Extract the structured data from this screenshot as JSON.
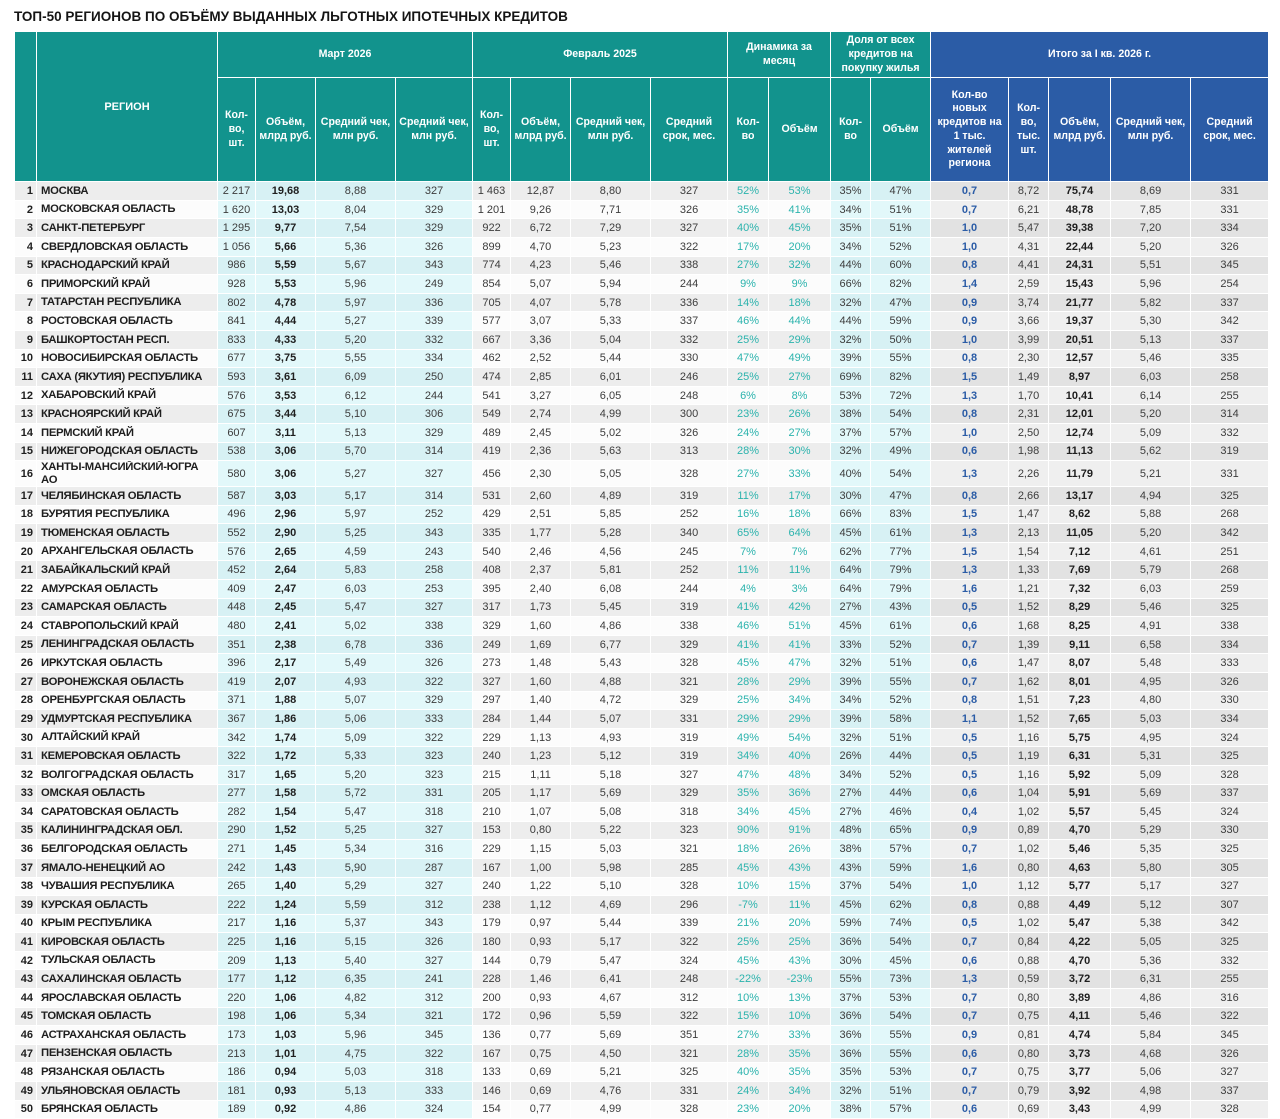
{
  "title": "ТОП-50 РЕГИОНОВ ПО ОБЪЁМУ ВЫДАННЫХ ЛЬГОТНЫХ ИПОТЕЧНЫХ КРЕДИТОВ",
  "colors": {
    "header_teal": "#12938D",
    "header_blue": "#2B5CA6",
    "dynamics_text": "#2BB3AD",
    "total_first_col_text": "#2B5CA6",
    "light_cyan_odd": "#D7F1F4",
    "light_cyan_even": "#E2F8FA",
    "neutral_odd": "#EDEDED",
    "total_odd": "#E2E2E2"
  },
  "chart_data": {
    "type": "table",
    "title": "ТОП-50 РЕГИОНОВ ПО ОБЪЁМУ ВЫДАННЫХ ЛЬГОТНЫХ ИПОТЕЧНЫХ КРЕДИТОВ",
    "region_header": "РЕГИОН",
    "column_groups": [
      {
        "label": "Март 2026",
        "cols": [
          "Кол-во, шт.",
          "Объём, млрд руб.",
          "Средний чек, млн руб.",
          "Средний чек, млн руб."
        ]
      },
      {
        "label": "Февраль 2025",
        "cols": [
          "Кол-во, шт.",
          "Объём, млрд руб.",
          "Средний чек, млн руб.",
          "Средний срок, мес."
        ]
      },
      {
        "label": "Динамика за месяц",
        "cols": [
          "Кол-во",
          "Объём"
        ]
      },
      {
        "label": "Доля от всех кредитов на покупку жилья",
        "cols": [
          "Кол-во",
          "Объём"
        ]
      },
      {
        "label": "Итого за I кв. 2026 г.",
        "cols": [
          "Кол-во новых кредитов на 1 тыс. жителей региона",
          "Кол-во, тыс. шт.",
          "Объём, млрд руб.",
          "Средний чек, млн руб.",
          "Средний срок, мес."
        ]
      }
    ],
    "rows": [
      [
        "1",
        "МОСКВА",
        "2 217",
        "19,68",
        "8,88",
        "327",
        "1 463",
        "12,87",
        "8,80",
        "327",
        "52%",
        "53%",
        "35%",
        "47%",
        "0,7",
        "8,72",
        "75,74",
        "8,69",
        "331"
      ],
      [
        "2",
        "МОСКОВСКАЯ ОБЛАСТЬ",
        "1 620",
        "13,03",
        "8,04",
        "329",
        "1 201",
        "9,26",
        "7,71",
        "326",
        "35%",
        "41%",
        "34%",
        "51%",
        "0,7",
        "6,21",
        "48,78",
        "7,85",
        "331"
      ],
      [
        "3",
        "САНКТ-ПЕТЕРБУРГ",
        "1 295",
        "9,77",
        "7,54",
        "329",
        "922",
        "6,72",
        "7,29",
        "327",
        "40%",
        "45%",
        "35%",
        "51%",
        "1,0",
        "5,47",
        "39,38",
        "7,20",
        "334"
      ],
      [
        "4",
        "СВЕРДЛОВСКАЯ ОБЛАСТЬ",
        "1 056",
        "5,66",
        "5,36",
        "326",
        "899",
        "4,70",
        "5,23",
        "322",
        "17%",
        "20%",
        "34%",
        "52%",
        "1,0",
        "4,31",
        "22,44",
        "5,20",
        "326"
      ],
      [
        "5",
        "КРАСНОДАРСКИЙ КРАЙ",
        "986",
        "5,59",
        "5,67",
        "343",
        "774",
        "4,23",
        "5,46",
        "338",
        "27%",
        "32%",
        "44%",
        "60%",
        "0,8",
        "4,41",
        "24,31",
        "5,51",
        "345"
      ],
      [
        "6",
        "ПРИМОРСКИЙ КРАЙ",
        "928",
        "5,53",
        "5,96",
        "249",
        "854",
        "5,07",
        "5,94",
        "244",
        "9%",
        "9%",
        "66%",
        "82%",
        "1,4",
        "2,59",
        "15,43",
        "5,96",
        "254"
      ],
      [
        "7",
        "ТАТАРСТАН РЕСПУБЛИКА",
        "802",
        "4,78",
        "5,97",
        "336",
        "705",
        "4,07",
        "5,78",
        "336",
        "14%",
        "18%",
        "32%",
        "47%",
        "0,9",
        "3,74",
        "21,77",
        "5,82",
        "337"
      ],
      [
        "8",
        "РОСТОВСКАЯ ОБЛАСТЬ",
        "841",
        "4,44",
        "5,27",
        "339",
        "577",
        "3,07",
        "5,33",
        "337",
        "46%",
        "44%",
        "44%",
        "59%",
        "0,9",
        "3,66",
        "19,37",
        "5,30",
        "342"
      ],
      [
        "9",
        "БАШКОРТОСТАН РЕСП.",
        "833",
        "4,33",
        "5,20",
        "332",
        "667",
        "3,36",
        "5,04",
        "332",
        "25%",
        "29%",
        "32%",
        "50%",
        "1,0",
        "3,99",
        "20,51",
        "5,13",
        "337"
      ],
      [
        "10",
        "НОВОСИБИРСКАЯ ОБЛАСТЬ",
        "677",
        "3,75",
        "5,55",
        "334",
        "462",
        "2,52",
        "5,44",
        "330",
        "47%",
        "49%",
        "39%",
        "55%",
        "0,8",
        "2,30",
        "12,57",
        "5,46",
        "335"
      ],
      [
        "11",
        "САХА (ЯКУТИЯ) РЕСПУБЛИКА",
        "593",
        "3,61",
        "6,09",
        "250",
        "474",
        "2,85",
        "6,01",
        "246",
        "25%",
        "27%",
        "69%",
        "82%",
        "1,5",
        "1,49",
        "8,97",
        "6,03",
        "258"
      ],
      [
        "12",
        "ХАБАРОВСКИЙ КРАЙ",
        "576",
        "3,53",
        "6,12",
        "244",
        "541",
        "3,27",
        "6,05",
        "248",
        "6%",
        "8%",
        "53%",
        "72%",
        "1,3",
        "1,70",
        "10,41",
        "6,14",
        "255"
      ],
      [
        "13",
        "КРАСНОЯРСКИЙ КРАЙ",
        "675",
        "3,44",
        "5,10",
        "306",
        "549",
        "2,74",
        "4,99",
        "300",
        "23%",
        "26%",
        "38%",
        "54%",
        "0,8",
        "2,31",
        "12,01",
        "5,20",
        "314"
      ],
      [
        "14",
        "ПЕРМСКИЙ КРАЙ",
        "607",
        "3,11",
        "5,13",
        "329",
        "489",
        "2,45",
        "5,02",
        "326",
        "24%",
        "27%",
        "37%",
        "57%",
        "1,0",
        "2,50",
        "12,74",
        "5,09",
        "332"
      ],
      [
        "15",
        "НИЖЕГОРОДСКАЯ ОБЛАСТЬ",
        "538",
        "3,06",
        "5,70",
        "314",
        "419",
        "2,36",
        "5,63",
        "313",
        "28%",
        "30%",
        "32%",
        "49%",
        "0,6",
        "1,98",
        "11,13",
        "5,62",
        "319"
      ],
      [
        "16",
        "ХАНТЫ-МАНСИЙСКИЙ-ЮГРА АО",
        "580",
        "3,06",
        "5,27",
        "327",
        "456",
        "2,30",
        "5,05",
        "328",
        "27%",
        "33%",
        "40%",
        "54%",
        "1,3",
        "2,26",
        "11,79",
        "5,21",
        "331"
      ],
      [
        "17",
        "ЧЕЛЯБИНСКАЯ ОБЛАСТЬ",
        "587",
        "3,03",
        "5,17",
        "314",
        "531",
        "2,60",
        "4,89",
        "319",
        "11%",
        "17%",
        "30%",
        "47%",
        "0,8",
        "2,66",
        "13,17",
        "4,94",
        "325"
      ],
      [
        "18",
        "БУРЯТИЯ РЕСПУБЛИКА",
        "496",
        "2,96",
        "5,97",
        "252",
        "429",
        "2,51",
        "5,85",
        "252",
        "16%",
        "18%",
        "66%",
        "83%",
        "1,5",
        "1,47",
        "8,62",
        "5,88",
        "268"
      ],
      [
        "19",
        "ТЮМЕНСКАЯ ОБЛАСТЬ",
        "552",
        "2,90",
        "5,25",
        "343",
        "335",
        "1,77",
        "5,28",
        "340",
        "65%",
        "64%",
        "45%",
        "61%",
        "1,3",
        "2,13",
        "11,05",
        "5,20",
        "342"
      ],
      [
        "20",
        "АРХАНГЕЛЬСКАЯ ОБЛАСТЬ",
        "576",
        "2,65",
        "4,59",
        "243",
        "540",
        "2,46",
        "4,56",
        "245",
        "7%",
        "7%",
        "62%",
        "77%",
        "1,5",
        "1,54",
        "7,12",
        "4,61",
        "251"
      ],
      [
        "21",
        "ЗАБАЙКАЛЬСКИЙ КРАЙ",
        "452",
        "2,64",
        "5,83",
        "258",
        "408",
        "2,37",
        "5,81",
        "252",
        "11%",
        "11%",
        "64%",
        "79%",
        "1,3",
        "1,33",
        "7,69",
        "5,79",
        "268"
      ],
      [
        "22",
        "АМУРСКАЯ ОБЛАСТЬ",
        "409",
        "2,47",
        "6,03",
        "253",
        "395",
        "2,40",
        "6,08",
        "244",
        "4%",
        "3%",
        "64%",
        "79%",
        "1,6",
        "1,21",
        "7,32",
        "6,03",
        "259"
      ],
      [
        "23",
        "САМАРСКАЯ ОБЛАСТЬ",
        "448",
        "2,45",
        "5,47",
        "327",
        "317",
        "1,73",
        "5,45",
        "319",
        "41%",
        "42%",
        "27%",
        "43%",
        "0,5",
        "1,52",
        "8,29",
        "5,46",
        "325"
      ],
      [
        "24",
        "СТАВРОПОЛЬСКИЙ КРАЙ",
        "480",
        "2,41",
        "5,02",
        "338",
        "329",
        "1,60",
        "4,86",
        "338",
        "46%",
        "51%",
        "45%",
        "61%",
        "0,6",
        "1,68",
        "8,25",
        "4,91",
        "338"
      ],
      [
        "25",
        "ЛЕНИНГРАДСКАЯ ОБЛАСТЬ",
        "351",
        "2,38",
        "6,78",
        "336",
        "249",
        "1,69",
        "6,77",
        "329",
        "41%",
        "41%",
        "33%",
        "52%",
        "0,7",
        "1,39",
        "9,11",
        "6,58",
        "334"
      ],
      [
        "26",
        "ИРКУТСКАЯ ОБЛАСТЬ",
        "396",
        "2,17",
        "5,49",
        "326",
        "273",
        "1,48",
        "5,43",
        "328",
        "45%",
        "47%",
        "32%",
        "51%",
        "0,6",
        "1,47",
        "8,07",
        "5,48",
        "333"
      ],
      [
        "27",
        "ВОРОНЕЖСКАЯ ОБЛАСТЬ",
        "419",
        "2,07",
        "4,93",
        "322",
        "327",
        "1,60",
        "4,88",
        "321",
        "28%",
        "29%",
        "39%",
        "55%",
        "0,7",
        "1,62",
        "8,01",
        "4,95",
        "326"
      ],
      [
        "28",
        "ОРЕНБУРГСКАЯ ОБЛАСТЬ",
        "371",
        "1,88",
        "5,07",
        "329",
        "297",
        "1,40",
        "4,72",
        "329",
        "25%",
        "34%",
        "34%",
        "52%",
        "0,8",
        "1,51",
        "7,23",
        "4,80",
        "330"
      ],
      [
        "29",
        "УДМУРТСКАЯ РЕСПУБЛИКА",
        "367",
        "1,86",
        "5,06",
        "333",
        "284",
        "1,44",
        "5,07",
        "331",
        "29%",
        "29%",
        "39%",
        "58%",
        "1,1",
        "1,52",
        "7,65",
        "5,03",
        "334"
      ],
      [
        "30",
        "АЛТАЙСКИЙ КРАЙ",
        "342",
        "1,74",
        "5,09",
        "322",
        "229",
        "1,13",
        "4,93",
        "319",
        "49%",
        "54%",
        "32%",
        "51%",
        "0,5",
        "1,16",
        "5,75",
        "4,95",
        "324"
      ],
      [
        "31",
        "КЕМЕРОВСКАЯ ОБЛАСТЬ",
        "322",
        "1,72",
        "5,33",
        "323",
        "240",
        "1,23",
        "5,12",
        "319",
        "34%",
        "40%",
        "26%",
        "44%",
        "0,5",
        "1,19",
        "6,31",
        "5,31",
        "325"
      ],
      [
        "32",
        "ВОЛГОГРАДСКАЯ ОБЛАСТЬ",
        "317",
        "1,65",
        "5,20",
        "323",
        "215",
        "1,11",
        "5,18",
        "327",
        "47%",
        "48%",
        "34%",
        "52%",
        "0,5",
        "1,16",
        "5,92",
        "5,09",
        "328"
      ],
      [
        "33",
        "ОМСКАЯ ОБЛАСТЬ",
        "277",
        "1,58",
        "5,72",
        "331",
        "205",
        "1,17",
        "5,69",
        "329",
        "35%",
        "36%",
        "27%",
        "44%",
        "0,6",
        "1,04",
        "5,91",
        "5,69",
        "337"
      ],
      [
        "34",
        "САРАТОВСКАЯ ОБЛАСТЬ",
        "282",
        "1,54",
        "5,47",
        "318",
        "210",
        "1,07",
        "5,08",
        "318",
        "34%",
        "45%",
        "27%",
        "46%",
        "0,4",
        "1,02",
        "5,57",
        "5,45",
        "324"
      ],
      [
        "35",
        "КАЛИНИНГРАДСКАЯ ОБЛ.",
        "290",
        "1,52",
        "5,25",
        "327",
        "153",
        "0,80",
        "5,22",
        "323",
        "90%",
        "91%",
        "48%",
        "65%",
        "0,9",
        "0,89",
        "4,70",
        "5,29",
        "330"
      ],
      [
        "36",
        "БЕЛГОРОДСКАЯ ОБЛАСТЬ",
        "271",
        "1,45",
        "5,34",
        "316",
        "229",
        "1,15",
        "5,03",
        "321",
        "18%",
        "26%",
        "38%",
        "57%",
        "0,7",
        "1,02",
        "5,46",
        "5,35",
        "325"
      ],
      [
        "37",
        "ЯМАЛО-НЕНЕЦКИЙ АО",
        "242",
        "1,43",
        "5,90",
        "287",
        "167",
        "1,00",
        "5,98",
        "285",
        "45%",
        "43%",
        "43%",
        "59%",
        "1,6",
        "0,80",
        "4,63",
        "5,80",
        "305"
      ],
      [
        "38",
        "ЧУВАШИЯ РЕСПУБЛИКА",
        "265",
        "1,40",
        "5,29",
        "327",
        "240",
        "1,22",
        "5,10",
        "328",
        "10%",
        "15%",
        "37%",
        "54%",
        "1,0",
        "1,12",
        "5,77",
        "5,17",
        "327"
      ],
      [
        "39",
        "КУРСКАЯ ОБЛАСТЬ",
        "222",
        "1,24",
        "5,59",
        "312",
        "238",
        "1,12",
        "4,69",
        "296",
        "-7%",
        "11%",
        "45%",
        "62%",
        "0,8",
        "0,88",
        "4,49",
        "5,12",
        "307"
      ],
      [
        "40",
        "КРЫМ РЕСПУБЛИКА",
        "217",
        "1,16",
        "5,37",
        "343",
        "179",
        "0,97",
        "5,44",
        "339",
        "21%",
        "20%",
        "59%",
        "74%",
        "0,5",
        "1,02",
        "5,47",
        "5,38",
        "342"
      ],
      [
        "41",
        "КИРОВСКАЯ ОБЛАСТЬ",
        "225",
        "1,16",
        "5,15",
        "326",
        "180",
        "0,93",
        "5,17",
        "322",
        "25%",
        "25%",
        "36%",
        "54%",
        "0,7",
        "0,84",
        "4,22",
        "5,05",
        "325"
      ],
      [
        "42",
        "ТУЛЬСКАЯ ОБЛАСТЬ",
        "209",
        "1,13",
        "5,40",
        "327",
        "144",
        "0,79",
        "5,47",
        "324",
        "45%",
        "43%",
        "30%",
        "45%",
        "0,6",
        "0,88",
        "4,70",
        "5,36",
        "332"
      ],
      [
        "43",
        "САХАЛИНСКАЯ ОБЛАСТЬ",
        "177",
        "1,12",
        "6,35",
        "241",
        "228",
        "1,46",
        "6,41",
        "248",
        "-22%",
        "-23%",
        "55%",
        "73%",
        "1,3",
        "0,59",
        "3,72",
        "6,31",
        "255"
      ],
      [
        "44",
        "ЯРОСЛАВСКАЯ ОБЛАСТЬ",
        "220",
        "1,06",
        "4,82",
        "312",
        "200",
        "0,93",
        "4,67",
        "312",
        "10%",
        "13%",
        "37%",
        "53%",
        "0,7",
        "0,80",
        "3,89",
        "4,86",
        "316"
      ],
      [
        "45",
        "ТОМСКАЯ ОБЛАСТЬ",
        "198",
        "1,06",
        "5,34",
        "321",
        "172",
        "0,96",
        "5,59",
        "322",
        "15%",
        "10%",
        "36%",
        "54%",
        "0,7",
        "0,75",
        "4,11",
        "5,46",
        "322"
      ],
      [
        "46",
        "АСТРАХАНСКАЯ ОБЛАСТЬ",
        "173",
        "1,03",
        "5,96",
        "345",
        "136",
        "0,77",
        "5,69",
        "351",
        "27%",
        "33%",
        "36%",
        "55%",
        "0,9",
        "0,81",
        "4,74",
        "5,84",
        "345"
      ],
      [
        "47",
        "ПЕНЗЕНСКАЯ ОБЛАСТЬ",
        "213",
        "1,01",
        "4,75",
        "322",
        "167",
        "0,75",
        "4,50",
        "321",
        "28%",
        "35%",
        "36%",
        "55%",
        "0,6",
        "0,80",
        "3,73",
        "4,68",
        "326"
      ],
      [
        "48",
        "РЯЗАНСКАЯ ОБЛАСТЬ",
        "186",
        "0,94",
        "5,03",
        "318",
        "133",
        "0,69",
        "5,21",
        "325",
        "40%",
        "35%",
        "35%",
        "53%",
        "0,7",
        "0,75",
        "3,77",
        "5,06",
        "327"
      ],
      [
        "49",
        "УЛЬЯНОВСКАЯ ОБЛАСТЬ",
        "181",
        "0,93",
        "5,13",
        "333",
        "146",
        "0,69",
        "4,76",
        "331",
        "24%",
        "34%",
        "32%",
        "51%",
        "0,7",
        "0,79",
        "3,92",
        "4,98",
        "337"
      ],
      [
        "50",
        "БРЯНСКАЯ ОБЛАСТЬ",
        "189",
        "0,92",
        "4,86",
        "324",
        "154",
        "0,77",
        "4,99",
        "328",
        "23%",
        "20%",
        "38%",
        "57%",
        "0,6",
        "0,69",
        "3,43",
        "4,99",
        "328"
      ]
    ]
  }
}
